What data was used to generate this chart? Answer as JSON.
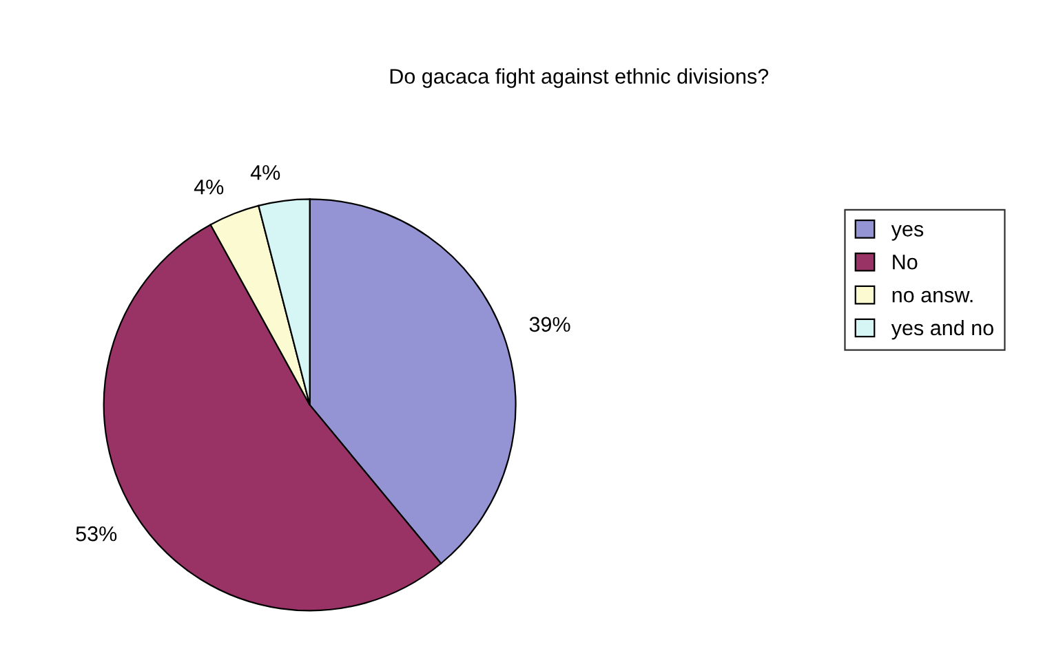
{
  "chart_data": {
    "type": "pie",
    "title": "Do gacaca fight against ethnic divisions?",
    "categories": [
      "yes",
      "No",
      "no answ.",
      "yes and no"
    ],
    "values": [
      39,
      53,
      4,
      4
    ],
    "value_labels": [
      "39%",
      "53%",
      "4%",
      "4%"
    ],
    "colors": [
      "#9494d4",
      "#993366",
      "#fcfad0",
      "#d6f5f5"
    ],
    "legend": "right"
  }
}
